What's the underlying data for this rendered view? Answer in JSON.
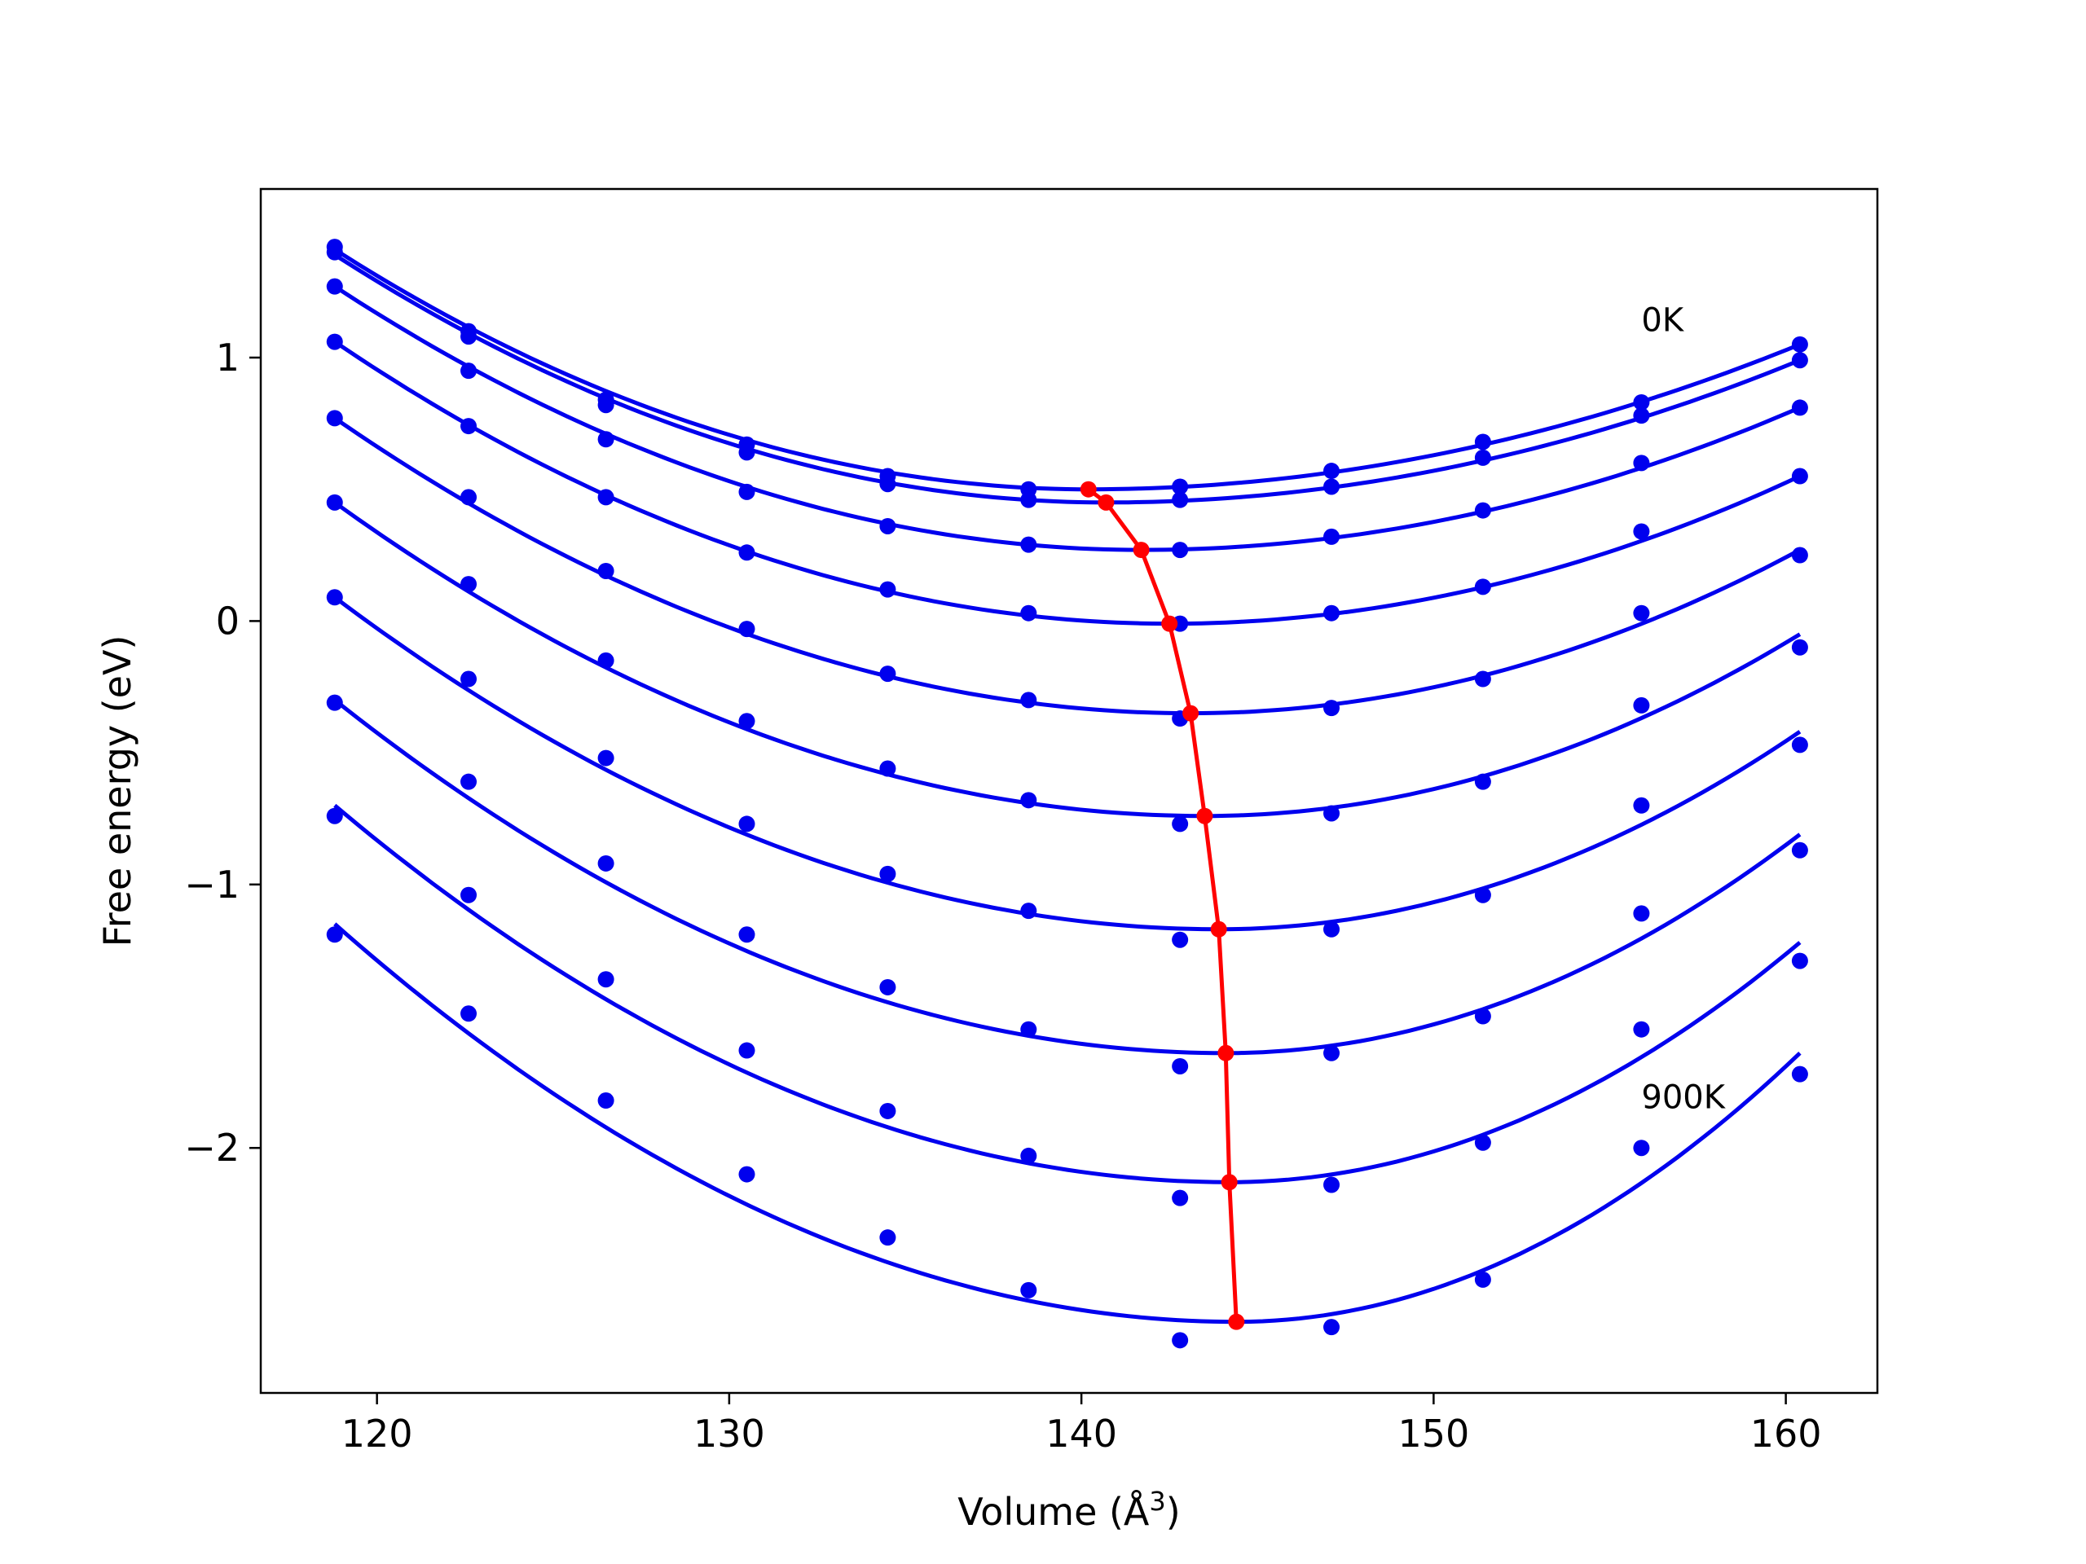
{
  "chart_data": {
    "type": "line",
    "title": "",
    "xlabel": "Volume (Å",
    "xlabel_superscript": "3",
    "xlabel_close": ")",
    "ylabel": "Free energy (eV)",
    "xlim": [
      116.7,
      162.6
    ],
    "ylim": [
      -2.93,
      1.64
    ],
    "xticks": [
      120,
      130,
      140,
      150,
      160
    ],
    "xtick_labels": [
      "120",
      "130",
      "140",
      "150",
      "160"
    ],
    "yticks": [
      -2,
      -1,
      0,
      1
    ],
    "ytick_labels": [
      "−2",
      "−1",
      "0",
      "1"
    ],
    "grid": false,
    "legend": "none",
    "annotations": [
      {
        "text": "0K",
        "x": 155.9,
        "y": 1.1
      },
      {
        "text": "900K",
        "x": 155.9,
        "y": -1.85
      }
    ],
    "x": [
      118.8,
      122.6,
      126.5,
      130.5,
      134.5,
      138.5,
      142.8,
      147.1,
      151.4,
      155.9,
      160.4
    ],
    "fit_curves": [
      {
        "min_x": 140.2,
        "min_y": 0.5,
        "endpoints": [
          [
            118.8,
            1.41
          ],
          [
            160.4,
            1.05
          ]
        ]
      },
      {
        "min_x": 140.7,
        "min_y": 0.45,
        "endpoints": [
          [
            118.8,
            1.39
          ],
          [
            160.4,
            0.99
          ]
        ]
      },
      {
        "min_x": 141.7,
        "min_y": 0.27,
        "endpoints": [
          [
            118.8,
            1.27
          ],
          [
            160.4,
            0.81
          ]
        ]
      },
      {
        "min_x": 142.5,
        "min_y": -0.01,
        "endpoints": [
          [
            118.8,
            1.06
          ],
          [
            160.4,
            0.55
          ]
        ]
      },
      {
        "min_x": 143.1,
        "min_y": -0.35,
        "endpoints": [
          [
            118.8,
            0.77
          ],
          [
            160.4,
            0.27
          ]
        ]
      },
      {
        "min_x": 143.5,
        "min_y": -0.74,
        "endpoints": [
          [
            118.8,
            0.45
          ],
          [
            160.4,
            -0.05
          ]
        ]
      },
      {
        "min_x": 143.9,
        "min_y": -1.17,
        "endpoints": [
          [
            118.8,
            0.09
          ],
          [
            160.4,
            -0.42
          ]
        ]
      },
      {
        "min_x": 144.1,
        "min_y": -1.64,
        "endpoints": [
          [
            118.8,
            -0.3
          ],
          [
            160.4,
            -0.81
          ]
        ]
      },
      {
        "min_x": 144.2,
        "min_y": -2.13,
        "endpoints": [
          [
            118.8,
            -0.7
          ],
          [
            160.4,
            -1.22
          ]
        ]
      },
      {
        "min_x": 144.4,
        "min_y": -2.66,
        "endpoints": [
          [
            118.8,
            -1.15
          ],
          [
            160.4,
            -1.64
          ]
        ]
      }
    ],
    "series": [
      {
        "values": [
          1.42,
          1.1,
          0.84,
          0.67,
          0.55,
          0.5,
          0.51,
          0.57,
          0.68,
          0.83,
          1.05
        ]
      },
      {
        "values": [
          1.4,
          1.08,
          0.82,
          0.64,
          0.52,
          0.46,
          0.46,
          0.51,
          0.62,
          0.78,
          0.99
        ]
      },
      {
        "values": [
          1.27,
          0.95,
          0.69,
          0.49,
          0.36,
          0.29,
          0.27,
          0.32,
          0.42,
          0.6,
          0.81
        ]
      },
      {
        "values": [
          1.06,
          0.74,
          0.47,
          0.26,
          0.12,
          0.03,
          -0.01,
          0.03,
          0.13,
          0.34,
          0.55
        ]
      },
      {
        "values": [
          0.77,
          0.47,
          0.19,
          -0.03,
          -0.2,
          -0.3,
          -0.37,
          -0.33,
          -0.22,
          0.03,
          0.25
        ]
      },
      {
        "values": [
          0.45,
          0.14,
          -0.15,
          -0.38,
          -0.56,
          -0.68,
          -0.77,
          -0.73,
          -0.61,
          -0.32,
          -0.1
        ]
      },
      {
        "values": [
          0.09,
          -0.22,
          -0.52,
          -0.77,
          -0.96,
          -1.1,
          -1.21,
          -1.17,
          -1.04,
          -0.7,
          -0.47
        ]
      },
      {
        "values": [
          -0.31,
          -0.61,
          -0.92,
          -1.19,
          -1.39,
          -1.55,
          -1.69,
          -1.64,
          -1.5,
          -1.11,
          -0.87
        ]
      },
      {
        "values": [
          -0.74,
          -1.04,
          -1.36,
          -1.63,
          -1.86,
          -2.03,
          -2.19,
          -2.14,
          -1.98,
          -1.55,
          -1.29
        ]
      },
      {
        "values": [
          -1.19,
          -1.49,
          -1.82,
          -2.1,
          -2.34,
          -2.54,
          -2.73,
          -2.68,
          -2.5,
          -2.0,
          -1.72
        ]
      }
    ],
    "minima_path": {
      "x": [
        140.2,
        140.7,
        141.7,
        142.5,
        143.1,
        143.5,
        143.9,
        144.1,
        144.2,
        144.4
      ],
      "y": [
        0.5,
        0.45,
        0.27,
        -0.01,
        -0.35,
        -0.74,
        -1.17,
        -1.64,
        -2.13,
        -2.66
      ]
    },
    "colors": {
      "series": "#0000ee",
      "minima": "#ff0000",
      "axes": "#000000"
    }
  }
}
